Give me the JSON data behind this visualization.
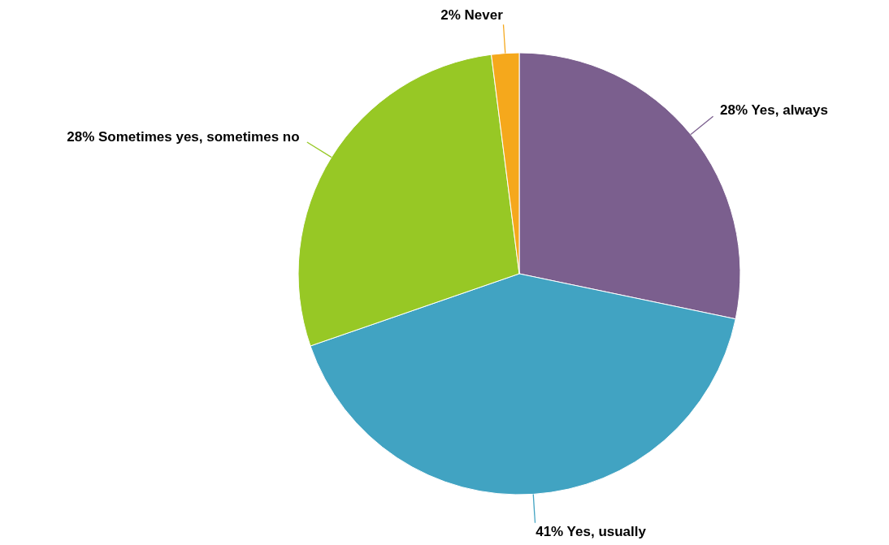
{
  "chart_data": {
    "type": "pie",
    "categories": [
      "Yes, always",
      "Yes, usually",
      "Sometimes yes, sometimes no",
      "Never"
    ],
    "values": [
      28,
      41,
      28,
      2
    ],
    "value_labels": [
      "28%",
      "41%",
      "28%",
      "2%"
    ],
    "colors": [
      "#7b5f8e",
      "#41a3c2",
      "#97c825",
      "#f5a81c"
    ]
  }
}
